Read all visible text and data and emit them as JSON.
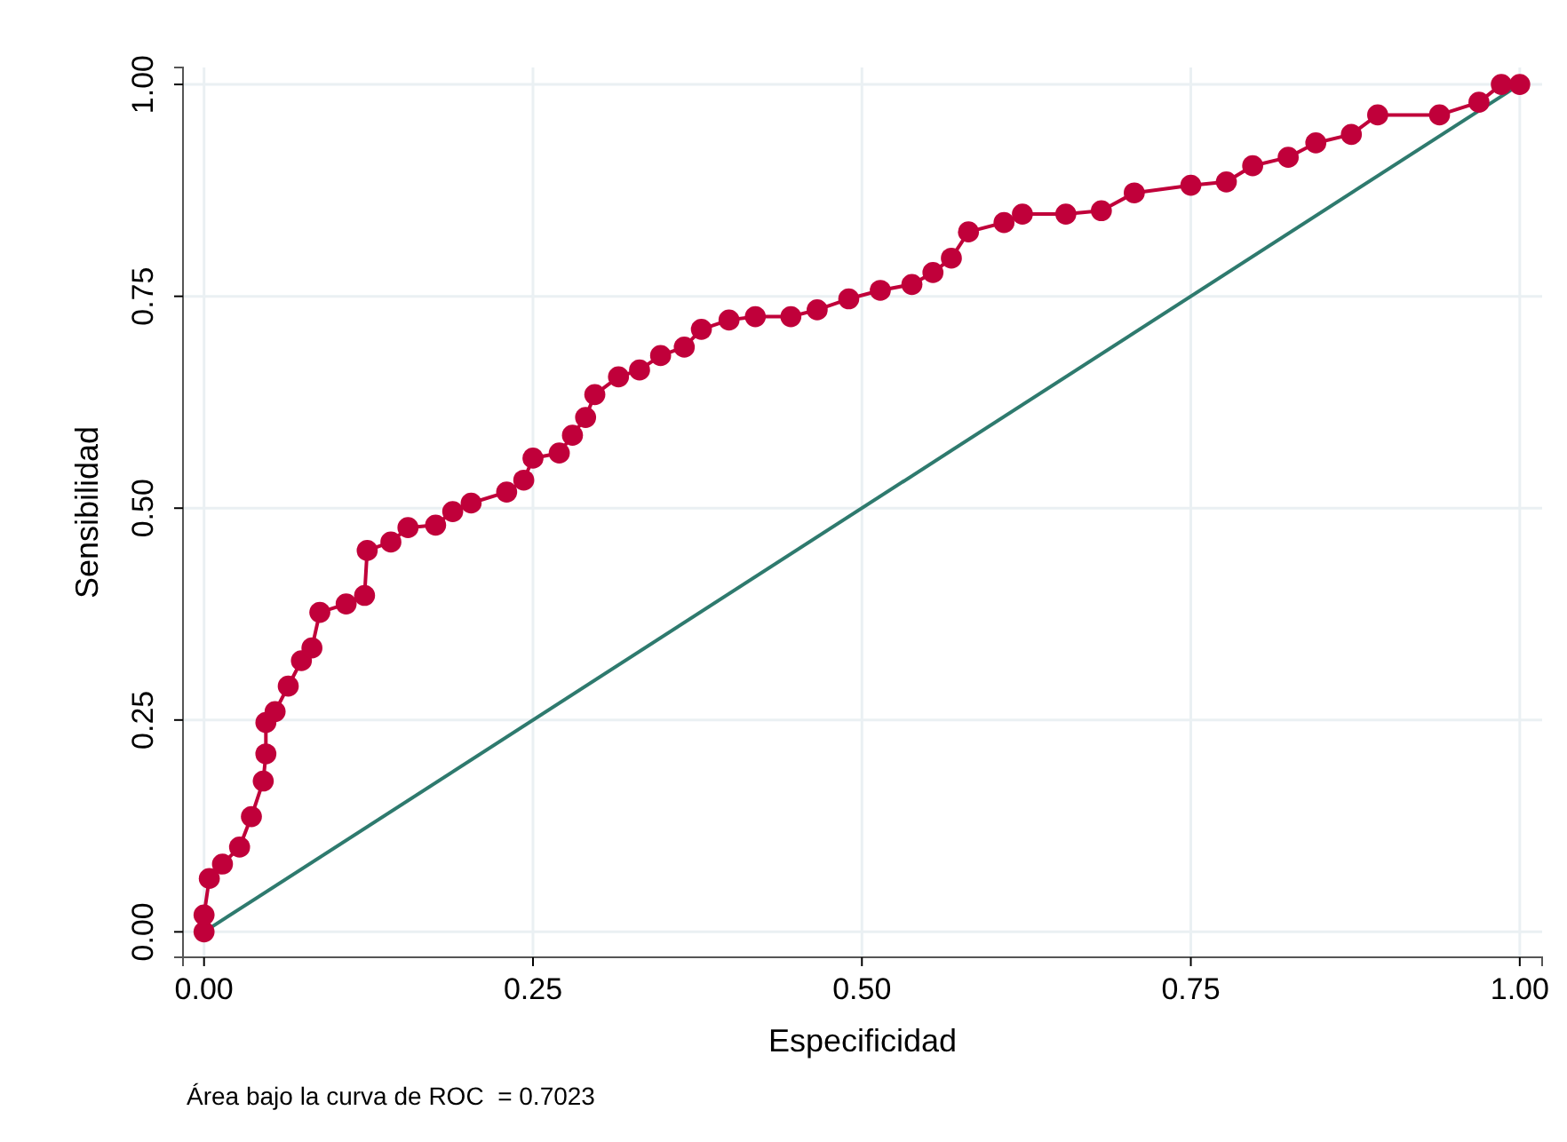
{
  "chart_data": {
    "type": "line",
    "xlabel": "Especificidad",
    "ylabel": "Sensibilidad",
    "annotations": [
      "Área bajo la curva de ROC  = 0.7023"
    ],
    "xlim": [
      -0.016,
      1.017
    ],
    "ylim": [
      -0.03,
      1.02
    ],
    "xticks": [
      {
        "value": 0,
        "label": "0.00"
      },
      {
        "value": 0.25,
        "label": "0.25"
      },
      {
        "value": 0.5,
        "label": "0.50"
      },
      {
        "value": 0.75,
        "label": "0.75"
      },
      {
        "value": 1,
        "label": "1.00"
      }
    ],
    "yticks": [
      {
        "value": 0,
        "label": "0.00"
      },
      {
        "value": 0.25,
        "label": "0.25"
      },
      {
        "value": 0.5,
        "label": "0.50"
      },
      {
        "value": 0.75,
        "label": "0.75"
      },
      {
        "value": 1,
        "label": "1.00"
      }
    ],
    "grid": true,
    "series": [
      {
        "type": "line",
        "color": "#2e7a6e",
        "marker": "none",
        "x": [
          0,
          1
        ],
        "values": [
          0,
          1
        ]
      },
      {
        "type": "line",
        "color": "#c0003a",
        "marker": "circle",
        "x": [
          0,
          0,
          0.004,
          0.014,
          0.027,
          0.036,
          0.045,
          0.047,
          0.047,
          0.054,
          0.064,
          0.074,
          0.082,
          0.088,
          0.108,
          0.122,
          0.124,
          0.142,
          0.155,
          0.176,
          0.189,
          0.203,
          0.23,
          0.243,
          0.25,
          0.27,
          0.28,
          0.29,
          0.297,
          0.315,
          0.331,
          0.347,
          0.365,
          0.378,
          0.399,
          0.419,
          0.446,
          0.466,
          0.49,
          0.514,
          0.538,
          0.554,
          0.568,
          0.581,
          0.608,
          0.622,
          0.655,
          0.682,
          0.707,
          0.75,
          0.777,
          0.797,
          0.824,
          0.845,
          0.872,
          0.892,
          0.939,
          0.969,
          0.986,
          1
        ],
        "values": [
          0,
          0.02,
          0.063,
          0.08,
          0.1,
          0.136,
          0.178,
          0.21,
          0.247,
          0.26,
          0.29,
          0.32,
          0.335,
          0.377,
          0.387,
          0.397,
          0.45,
          0.46,
          0.477,
          0.48,
          0.496,
          0.506,
          0.519,
          0.533,
          0.559,
          0.565,
          0.586,
          0.607,
          0.634,
          0.655,
          0.663,
          0.68,
          0.69,
          0.711,
          0.722,
          0.726,
          0.726,
          0.734,
          0.747,
          0.757,
          0.764,
          0.778,
          0.795,
          0.826,
          0.837,
          0.847,
          0.847,
          0.851,
          0.872,
          0.881,
          0.885,
          0.904,
          0.914,
          0.931,
          0.941,
          0.964,
          0.964,
          0.979,
          1,
          1
        ]
      }
    ]
  }
}
